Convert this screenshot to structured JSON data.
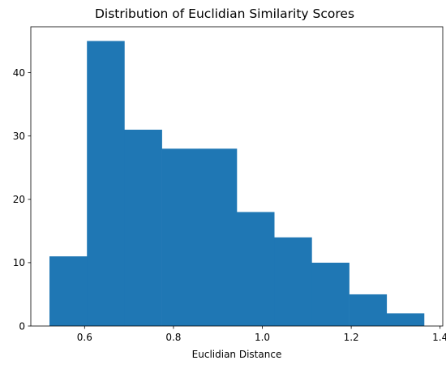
{
  "chart_data": {
    "type": "bar",
    "title": "Distribution of Euclidian Similarity Scores",
    "xlabel": "Euclidian Distance",
    "ylabel": "",
    "bin_edges": [
      0.521,
      0.6053,
      0.6896,
      0.7739,
      0.8582,
      0.9425,
      1.0268,
      1.1111,
      1.1954,
      1.2797,
      1.364
    ],
    "values": [
      11,
      45,
      31,
      28,
      28,
      18,
      14,
      10,
      5,
      2
    ],
    "xlim": [
      0.479,
      1.406
    ],
    "ylim": [
      0,
      47.25
    ],
    "xticks": [
      0.6,
      0.8,
      1.0,
      1.2,
      1.4
    ],
    "xtick_labels": [
      "0.6",
      "0.8",
      "1.0",
      "1.2",
      "1.4"
    ],
    "yticks": [
      0,
      10,
      20,
      30,
      40
    ],
    "ytick_labels": [
      "0",
      "10",
      "20",
      "30",
      "40"
    ],
    "bar_color": "#1f77b4",
    "grid": false,
    "legend": false
  }
}
